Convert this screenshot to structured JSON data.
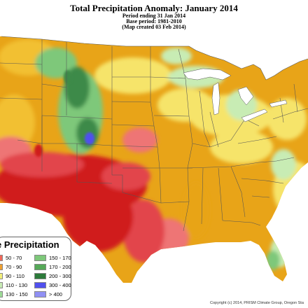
{
  "title": "Total Precipitation Anomaly: January 2014",
  "subtitles": [
    "Period ending 31 Jan 2014",
    "Base period: 1981-2010",
    "(Map created 03 Feb 2014)"
  ],
  "legend": {
    "title": "e Precipitation",
    "items": [
      {
        "label": "50 - 70",
        "color": "#f0685a"
      },
      {
        "label": "70 - 90",
        "color": "#f0a030"
      },
      {
        "label": "90 - 110",
        "color": "#f3f07a"
      },
      {
        "label": "110 - 130",
        "color": "#c8ecb4"
      },
      {
        "label": "130 - 150",
        "color": "#9cdc96"
      },
      {
        "label": "150 - 170",
        "color": "#7ec87a"
      },
      {
        "label": "170 - 200",
        "color": "#56a858"
      },
      {
        "label": "200 - 300",
        "color": "#2c7a3a"
      },
      {
        "label": "300 - 400",
        "color": "#5050ee"
      },
      {
        "label": "> 400",
        "color": "#9090f4"
      }
    ]
  },
  "copyright": "Copyright (c) 2014, PRISM Climate Group, Oregon Sta",
  "colors": {
    "very_dry": "#d01a1a",
    "dry_red": "#e2444c",
    "dry_pink": "#ee7474",
    "orange": "#e8a418",
    "yellow_orange": "#f2c030",
    "yellow": "#f6e46a",
    "light_green": "#c8ecb4",
    "green": "#7ec87a",
    "dark_green": "#3e8a4a",
    "blue": "#5050ee",
    "boundary": "#555555",
    "ocean": "#ffffff"
  }
}
